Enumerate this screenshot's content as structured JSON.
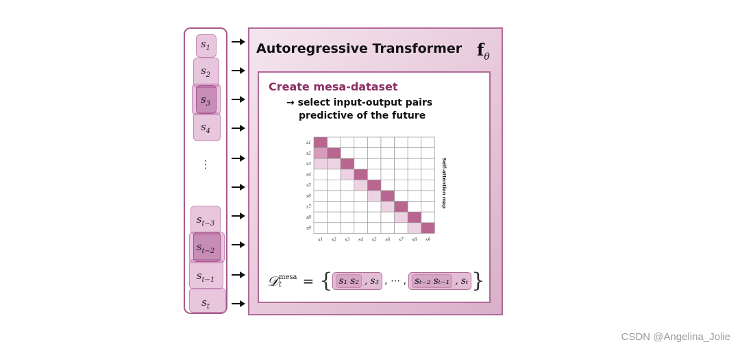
{
  "tokens": {
    "labels": [
      "s",
      "s",
      "s",
      "s",
      "⋮",
      "s",
      "s",
      "s",
      "s"
    ],
    "subscripts": [
      "1",
      "2",
      "3",
      "4",
      "",
      "t−3",
      "t−2",
      "t−1",
      "t"
    ]
  },
  "transformer": {
    "title": "Autoregressive Transformer",
    "f_symbol": "f",
    "f_subscript": "θ"
  },
  "mesa": {
    "title": "Create mesa-dataset",
    "line1": "→ select input-output pairs",
    "line2": "predictive of the future"
  },
  "attention_map": {
    "label": "Self-attention map",
    "row_labels": [
      "s1",
      "s2",
      "s3",
      "s4",
      "s5",
      "s6",
      "s7",
      "s8",
      "s9"
    ],
    "col_labels": [
      "s1",
      "s2",
      "s3",
      "s4",
      "s5",
      "s6",
      "s7",
      "s8",
      "s9"
    ],
    "colors": {
      "strong": "#b8658f",
      "medium": "#d79bbd",
      "light": "#ecd2e2"
    }
  },
  "formula": {
    "D": "𝒟",
    "D_sub": "t",
    "D_sup": "mesa",
    "equals": "=",
    "open_brace": "{",
    "close_brace": "}",
    "pair1_inputs": [
      "s₁",
      "s₂"
    ],
    "pair1_output": "s₃",
    "ellipsis": ", ⋯ ,",
    "pair2_inputs": [
      "sₜ₋₂",
      "sₜ₋₁"
    ],
    "pair2_output": "sₜ",
    "comma": ","
  },
  "watermark": "CSDN @Angelina_Jolie"
}
